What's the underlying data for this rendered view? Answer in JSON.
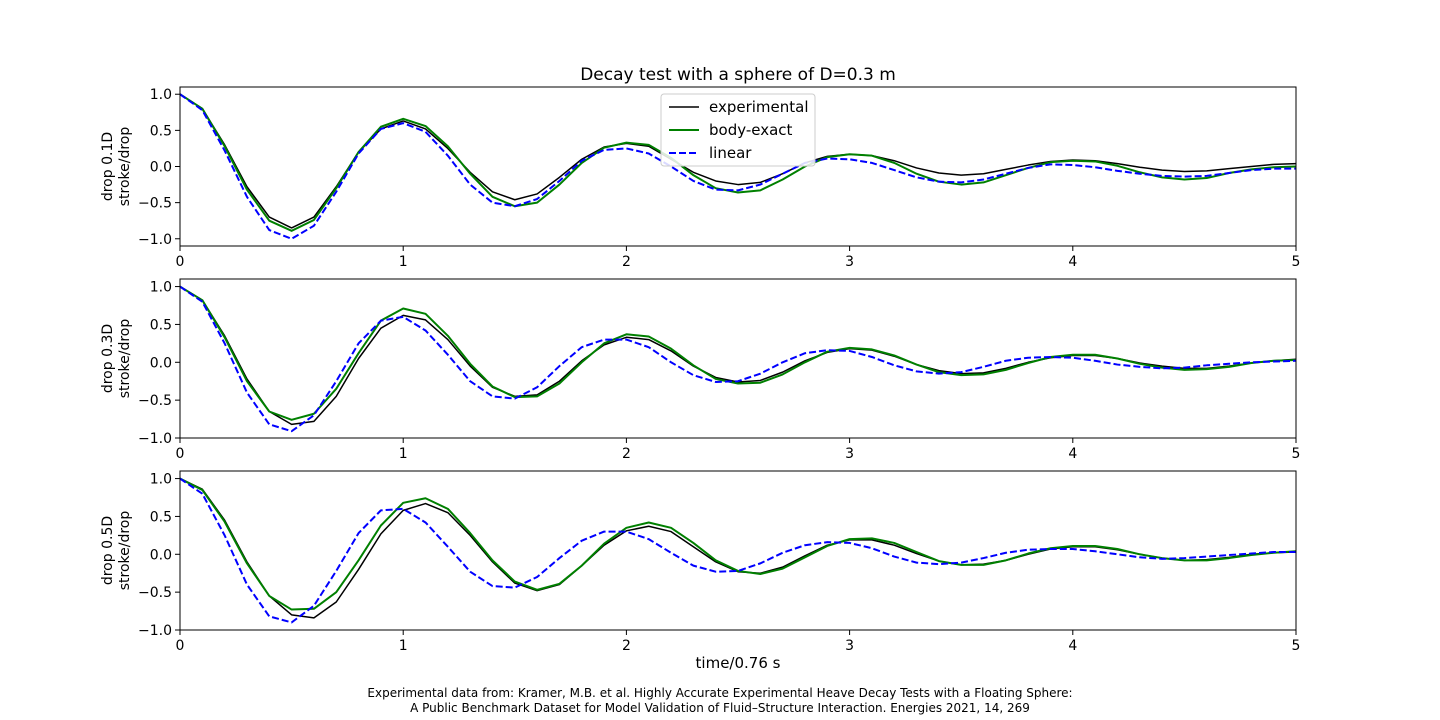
{
  "figure": {
    "title": "Decay test with a sphere of D=0.3 m",
    "xlabel": "time/0.76 s",
    "caption_line1": "Experimental data from: Kramer, M.B. et al. Highly Accurate Experimental Heave Decay Tests with a Floating Sphere:",
    "caption_line2": "A Public Benchmark Dataset for Model Validation of Fluid–Structure Interaction. Energies 2021, 14, 269"
  },
  "colors": {
    "experimental": "#000000",
    "body_exact": "#008000",
    "linear": "#0000ff"
  },
  "chart_data": [
    {
      "type": "line",
      "ylabel_line1": "drop 0.1D",
      "ylabel_line2": "stroke/drop",
      "xlim": [
        0,
        5
      ],
      "ylim": [
        -1.1,
        1.1
      ],
      "xticks": [
        "0",
        "1",
        "2",
        "3",
        "4",
        "5"
      ],
      "yticks": [
        "1.0",
        "0.5",
        "0.0",
        "−0.5",
        "−1.0"
      ],
      "legend": {
        "placement": "upper center",
        "entries": [
          "experimental",
          "body-exact",
          "linear"
        ]
      },
      "series": [
        {
          "name": "experimental",
          "style": "solid",
          "x": [
            0,
            0.1,
            0.2,
            0.3,
            0.4,
            0.5,
            0.6,
            0.7,
            0.8,
            0.9,
            1.0,
            1.1,
            1.2,
            1.3,
            1.4,
            1.5,
            1.6,
            1.7,
            1.8,
            1.9,
            2.0,
            2.1,
            2.2,
            2.3,
            2.4,
            2.5,
            2.6,
            2.7,
            2.8,
            2.9,
            3.0,
            3.1,
            3.2,
            3.3,
            3.4,
            3.5,
            3.6,
            3.7,
            3.8,
            3.9,
            4.0,
            4.1,
            4.2,
            4.3,
            4.4,
            4.5,
            4.6,
            4.7,
            4.8,
            4.9,
            5.0
          ],
          "y": [
            1.0,
            0.8,
            0.3,
            -0.28,
            -0.7,
            -0.85,
            -0.7,
            -0.28,
            0.2,
            0.52,
            0.63,
            0.52,
            0.25,
            -0.08,
            -0.35,
            -0.46,
            -0.38,
            -0.15,
            0.1,
            0.27,
            0.32,
            0.28,
            0.1,
            -0.08,
            -0.2,
            -0.25,
            -0.22,
            -0.1,
            0.05,
            0.14,
            0.17,
            0.15,
            0.08,
            -0.02,
            -0.09,
            -0.12,
            -0.1,
            -0.04,
            0.02,
            0.07,
            0.09,
            0.08,
            0.04,
            -0.01,
            -0.05,
            -0.07,
            -0.06,
            -0.03,
            0.0,
            0.03,
            0.04
          ]
        },
        {
          "name": "body-exact",
          "style": "solid",
          "x": [
            0,
            0.1,
            0.2,
            0.3,
            0.4,
            0.5,
            0.6,
            0.7,
            0.8,
            0.9,
            1.0,
            1.1,
            1.2,
            1.3,
            1.4,
            1.5,
            1.6,
            1.7,
            1.8,
            1.9,
            2.0,
            2.1,
            2.2,
            2.3,
            2.4,
            2.5,
            2.6,
            2.7,
            2.8,
            2.9,
            3.0,
            3.1,
            3.2,
            3.3,
            3.4,
            3.5,
            3.6,
            3.7,
            3.8,
            3.9,
            4.0,
            4.1,
            4.2,
            4.3,
            4.4,
            4.5,
            4.6,
            4.7,
            4.8,
            4.9,
            5.0
          ],
          "y": [
            1.0,
            0.8,
            0.28,
            -0.32,
            -0.75,
            -0.89,
            -0.74,
            -0.3,
            0.2,
            0.55,
            0.66,
            0.56,
            0.28,
            -0.1,
            -0.42,
            -0.55,
            -0.5,
            -0.25,
            0.05,
            0.26,
            0.33,
            0.3,
            0.12,
            -0.12,
            -0.3,
            -0.36,
            -0.33,
            -0.18,
            0.0,
            0.13,
            0.17,
            0.15,
            0.05,
            -0.1,
            -0.21,
            -0.25,
            -0.22,
            -0.12,
            -0.02,
            0.06,
            0.08,
            0.07,
            0.01,
            -0.08,
            -0.15,
            -0.18,
            -0.16,
            -0.09,
            -0.04,
            -0.01,
            0.0
          ]
        },
        {
          "name": "linear",
          "style": "dashed",
          "x": [
            0,
            0.1,
            0.2,
            0.3,
            0.4,
            0.5,
            0.6,
            0.7,
            0.8,
            0.9,
            1.0,
            1.1,
            1.2,
            1.3,
            1.4,
            1.5,
            1.6,
            1.7,
            1.8,
            1.9,
            2.0,
            2.1,
            2.2,
            2.3,
            2.4,
            2.5,
            2.6,
            2.7,
            2.8,
            2.9,
            3.0,
            3.1,
            3.2,
            3.3,
            3.4,
            3.5,
            3.6,
            3.7,
            3.8,
            3.9,
            4.0,
            4.1,
            4.2,
            4.3,
            4.4,
            4.5,
            4.6,
            4.7,
            4.8,
            4.9,
            5.0
          ],
          "y": [
            1.0,
            0.78,
            0.22,
            -0.42,
            -0.88,
            -1.0,
            -0.82,
            -0.35,
            0.18,
            0.52,
            0.6,
            0.48,
            0.15,
            -0.25,
            -0.5,
            -0.55,
            -0.45,
            -0.2,
            0.08,
            0.23,
            0.25,
            0.18,
            0.0,
            -0.2,
            -0.32,
            -0.33,
            -0.25,
            -0.1,
            0.05,
            0.11,
            0.1,
            0.05,
            -0.05,
            -0.15,
            -0.21,
            -0.22,
            -0.18,
            -0.1,
            -0.02,
            0.03,
            0.02,
            -0.01,
            -0.06,
            -0.1,
            -0.13,
            -0.14,
            -0.13,
            -0.09,
            -0.05,
            -0.03,
            -0.03
          ]
        }
      ]
    },
    {
      "type": "line",
      "ylabel_line1": "drop 0.3D",
      "ylabel_line2": "stroke/drop",
      "xlim": [
        0,
        5
      ],
      "ylim": [
        -1.0,
        1.1
      ],
      "xticks": [
        "0",
        "1",
        "2",
        "3",
        "4",
        "5"
      ],
      "yticks": [
        "1.0",
        "0.5",
        "0.0",
        "−0.5",
        "−1.0"
      ],
      "series": [
        {
          "name": "experimental",
          "style": "solid",
          "x": [
            0,
            0.1,
            0.2,
            0.3,
            0.4,
            0.5,
            0.6,
            0.7,
            0.8,
            0.9,
            1.0,
            1.1,
            1.2,
            1.3,
            1.4,
            1.5,
            1.6,
            1.7,
            1.8,
            1.9,
            2.0,
            2.1,
            2.2,
            2.3,
            2.4,
            2.5,
            2.6,
            2.7,
            2.8,
            2.9,
            3.0,
            3.1,
            3.2,
            3.3,
            3.4,
            3.5,
            3.6,
            3.7,
            3.8,
            3.9,
            4.0,
            4.1,
            4.2,
            4.3,
            4.4,
            4.5,
            4.6,
            4.7,
            4.8,
            4.9,
            5.0
          ],
          "y": [
            1.0,
            0.82,
            0.35,
            -0.22,
            -0.65,
            -0.82,
            -0.78,
            -0.45,
            0.05,
            0.45,
            0.62,
            0.56,
            0.3,
            -0.05,
            -0.33,
            -0.45,
            -0.43,
            -0.25,
            0.02,
            0.23,
            0.33,
            0.3,
            0.15,
            -0.05,
            -0.2,
            -0.26,
            -0.24,
            -0.13,
            0.02,
            0.13,
            0.18,
            0.16,
            0.08,
            -0.03,
            -0.11,
            -0.15,
            -0.14,
            -0.08,
            0.0,
            0.06,
            0.09,
            0.09,
            0.05,
            -0.01,
            -0.05,
            -0.08,
            -0.08,
            -0.05,
            -0.01,
            0.02,
            0.04
          ]
        },
        {
          "name": "body-exact",
          "style": "solid",
          "x": [
            0,
            0.1,
            0.2,
            0.3,
            0.4,
            0.5,
            0.6,
            0.7,
            0.8,
            0.9,
            1.0,
            1.1,
            1.2,
            1.3,
            1.4,
            1.5,
            1.6,
            1.7,
            1.8,
            1.9,
            2.0,
            2.1,
            2.2,
            2.3,
            2.4,
            2.5,
            2.6,
            2.7,
            2.8,
            2.9,
            3.0,
            3.1,
            3.2,
            3.3,
            3.4,
            3.5,
            3.6,
            3.7,
            3.8,
            3.9,
            4.0,
            4.1,
            4.2,
            4.3,
            4.4,
            4.5,
            4.6,
            4.7,
            4.8,
            4.9,
            5.0
          ],
          "y": [
            1.0,
            0.82,
            0.33,
            -0.25,
            -0.65,
            -0.76,
            -0.68,
            -0.35,
            0.12,
            0.55,
            0.71,
            0.64,
            0.35,
            -0.02,
            -0.32,
            -0.46,
            -0.45,
            -0.28,
            0.0,
            0.25,
            0.37,
            0.34,
            0.18,
            -0.04,
            -0.22,
            -0.28,
            -0.27,
            -0.16,
            0.0,
            0.14,
            0.19,
            0.17,
            0.09,
            -0.03,
            -0.13,
            -0.17,
            -0.16,
            -0.1,
            -0.01,
            0.07,
            0.1,
            0.1,
            0.05,
            -0.02,
            -0.07,
            -0.1,
            -0.09,
            -0.06,
            -0.01,
            0.02,
            0.03
          ]
        },
        {
          "name": "linear",
          "style": "dashed",
          "x": [
            0,
            0.1,
            0.2,
            0.3,
            0.4,
            0.5,
            0.6,
            0.7,
            0.8,
            0.9,
            1.0,
            1.1,
            1.2,
            1.3,
            1.4,
            1.5,
            1.6,
            1.7,
            1.8,
            1.9,
            2.0,
            2.1,
            2.2,
            2.3,
            2.4,
            2.5,
            2.6,
            2.7,
            2.8,
            2.9,
            3.0,
            3.1,
            3.2,
            3.3,
            3.4,
            3.5,
            3.6,
            3.7,
            3.8,
            3.9,
            4.0,
            4.1,
            4.2,
            4.3,
            4.4,
            4.5,
            4.6,
            4.7,
            4.8,
            4.9,
            5.0
          ],
          "y": [
            1.0,
            0.8,
            0.25,
            -0.4,
            -0.82,
            -0.91,
            -0.7,
            -0.25,
            0.25,
            0.55,
            0.6,
            0.42,
            0.1,
            -0.25,
            -0.45,
            -0.48,
            -0.33,
            -0.05,
            0.2,
            0.3,
            0.3,
            0.2,
            0.0,
            -0.17,
            -0.26,
            -0.25,
            -0.15,
            0.0,
            0.12,
            0.16,
            0.15,
            0.07,
            -0.04,
            -0.12,
            -0.15,
            -0.13,
            -0.06,
            0.02,
            0.06,
            0.07,
            0.06,
            0.02,
            -0.03,
            -0.06,
            -0.08,
            -0.07,
            -0.04,
            -0.02,
            0.0,
            0.01,
            0.02
          ]
        }
      ]
    },
    {
      "type": "line",
      "ylabel_line1": "drop 0.5D",
      "ylabel_line2": "stroke/drop",
      "xlim": [
        0,
        5
      ],
      "ylim": [
        -1.0,
        1.1
      ],
      "xticks": [
        "0",
        "1",
        "2",
        "3",
        "4",
        "5"
      ],
      "yticks": [
        "1.0",
        "0.5",
        "0.0",
        "−0.5",
        "−1.0"
      ],
      "series": [
        {
          "name": "experimental",
          "style": "solid",
          "x": [
            0,
            0.1,
            0.2,
            0.3,
            0.4,
            0.5,
            0.6,
            0.7,
            0.8,
            0.9,
            1.0,
            1.1,
            1.2,
            1.3,
            1.4,
            1.5,
            1.6,
            1.7,
            1.8,
            1.9,
            2.0,
            2.1,
            2.2,
            2.3,
            2.4,
            2.5,
            2.6,
            2.7,
            2.8,
            2.9,
            3.0,
            3.1,
            3.2,
            3.3,
            3.4,
            3.5,
            3.6,
            3.7,
            3.8,
            3.9,
            4.0,
            4.1,
            4.2,
            4.3,
            4.4,
            4.5,
            4.6,
            4.7,
            4.8,
            4.9,
            5.0
          ],
          "y": [
            1.0,
            0.86,
            0.45,
            -0.1,
            -0.55,
            -0.8,
            -0.84,
            -0.63,
            -0.2,
            0.27,
            0.58,
            0.67,
            0.55,
            0.25,
            -0.1,
            -0.38,
            -0.48,
            -0.4,
            -0.15,
            0.12,
            0.31,
            0.37,
            0.3,
            0.1,
            -0.1,
            -0.23,
            -0.25,
            -0.17,
            -0.02,
            0.12,
            0.19,
            0.19,
            0.12,
            0.01,
            -0.09,
            -0.14,
            -0.13,
            -0.08,
            0.0,
            0.07,
            0.1,
            0.1,
            0.06,
            0.0,
            -0.05,
            -0.08,
            -0.07,
            -0.04,
            0.0,
            0.02,
            0.03
          ]
        },
        {
          "name": "body-exact",
          "style": "solid",
          "x": [
            0,
            0.1,
            0.2,
            0.3,
            0.4,
            0.5,
            0.6,
            0.7,
            0.8,
            0.9,
            1.0,
            1.1,
            1.2,
            1.3,
            1.4,
            1.5,
            1.6,
            1.7,
            1.8,
            1.9,
            2.0,
            2.1,
            2.2,
            2.3,
            2.4,
            2.5,
            2.6,
            2.7,
            2.8,
            2.9,
            3.0,
            3.1,
            3.2,
            3.3,
            3.4,
            3.5,
            3.6,
            3.7,
            3.8,
            3.9,
            4.0,
            4.1,
            4.2,
            4.3,
            4.4,
            4.5,
            4.6,
            4.7,
            4.8,
            4.9,
            5.0
          ],
          "y": [
            1.0,
            0.85,
            0.43,
            -0.12,
            -0.55,
            -0.73,
            -0.72,
            -0.5,
            -0.08,
            0.38,
            0.68,
            0.74,
            0.6,
            0.28,
            -0.08,
            -0.36,
            -0.47,
            -0.39,
            -0.15,
            0.14,
            0.35,
            0.42,
            0.35,
            0.15,
            -0.08,
            -0.22,
            -0.26,
            -0.19,
            -0.04,
            0.11,
            0.2,
            0.21,
            0.15,
            0.03,
            -0.09,
            -0.14,
            -0.14,
            -0.08,
            0.01,
            0.08,
            0.11,
            0.11,
            0.07,
            0.0,
            -0.05,
            -0.08,
            -0.08,
            -0.05,
            -0.01,
            0.02,
            0.04
          ]
        },
        {
          "name": "linear",
          "style": "dashed",
          "x": [
            0,
            0.1,
            0.2,
            0.3,
            0.4,
            0.5,
            0.6,
            0.7,
            0.8,
            0.9,
            1.0,
            1.1,
            1.2,
            1.3,
            1.4,
            1.5,
            1.6,
            1.7,
            1.8,
            1.9,
            2.0,
            2.1,
            2.2,
            2.3,
            2.4,
            2.5,
            2.6,
            2.7,
            2.8,
            2.9,
            3.0,
            3.1,
            3.2,
            3.3,
            3.4,
            3.5,
            3.6,
            3.7,
            3.8,
            3.9,
            4.0,
            4.1,
            4.2,
            4.3,
            4.4,
            4.5,
            4.6,
            4.7,
            4.8,
            4.9,
            5.0
          ],
          "y": [
            1.0,
            0.8,
            0.25,
            -0.4,
            -0.82,
            -0.9,
            -0.68,
            -0.22,
            0.28,
            0.58,
            0.6,
            0.42,
            0.1,
            -0.23,
            -0.42,
            -0.44,
            -0.3,
            -0.05,
            0.18,
            0.3,
            0.3,
            0.2,
            0.02,
            -0.15,
            -0.23,
            -0.22,
            -0.12,
            0.02,
            0.12,
            0.16,
            0.15,
            0.08,
            -0.03,
            -0.11,
            -0.13,
            -0.11,
            -0.05,
            0.02,
            0.06,
            0.07,
            0.07,
            0.04,
            0.0,
            -0.04,
            -0.06,
            -0.05,
            -0.03,
            -0.01,
            0.01,
            0.03,
            0.03
          ]
        }
      ]
    }
  ]
}
